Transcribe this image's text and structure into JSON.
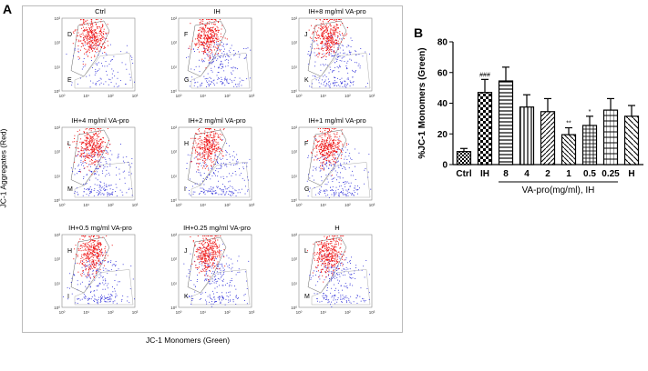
{
  "panel_labels": {
    "a": "A",
    "b": "B"
  },
  "flow": {
    "y_axis_title": "JC-1 Aggregates (Red)",
    "x_axis_title": "JC-1 Monomers (Green)",
    "tick_labels": [
      "10⁰",
      "10¹",
      "10²",
      "10³"
    ],
    "panels": [
      {
        "title": "Ctrl",
        "upper_gate": "D",
        "lower_gate": "E"
      },
      {
        "title": "IH",
        "upper_gate": "F",
        "lower_gate": "G"
      },
      {
        "title": "IH+8 mg/ml VA-pro",
        "upper_gate": "J",
        "lower_gate": "K"
      },
      {
        "title": "IH+4 mg/ml VA-pro",
        "upper_gate": "L",
        "lower_gate": "M"
      },
      {
        "title": "IH+2 mg/ml VA-pro",
        "upper_gate": "H",
        "lower_gate": "I"
      },
      {
        "title": "IH+1 mg/ml VA-pro",
        "upper_gate": "F",
        "lower_gate": "G"
      },
      {
        "title": "IH+0.5 mg/ml VA-pro",
        "upper_gate": "H",
        "lower_gate": "I"
      },
      {
        "title": "IH+0.25 mg/ml VA-pro",
        "upper_gate": "J",
        "lower_gate": "K"
      },
      {
        "title": "H",
        "upper_gate": "L",
        "lower_gate": "M"
      }
    ]
  },
  "chart_data": {
    "type": "bar",
    "title": "",
    "xlabel": "VA-pro(mg/ml), IH",
    "ylabel": "%JC-1 Monomers (Green)",
    "ylim": [
      0,
      80
    ],
    "yticks": [
      0,
      20,
      40,
      60,
      80
    ],
    "categories": [
      "Ctrl",
      "IH",
      "8",
      "4",
      "2",
      "1",
      "0.5",
      "0.25",
      "H"
    ],
    "values": [
      8.5,
      47,
      54.5,
      37.5,
      34.5,
      19.5,
      25.5,
      35.5,
      31.5
    ],
    "errors": [
      2,
      8.5,
      9,
      8,
      8.5,
      4.5,
      6,
      7.5,
      7
    ],
    "annotations": [
      "",
      "###",
      "",
      "",
      "",
      "**",
      "*",
      "",
      ""
    ],
    "bracket_start_category": "8",
    "bracket_end_category": "0.25",
    "colors": {
      "axis": "#000000",
      "fill": "#ffffff",
      "hatch": "#000000"
    }
  }
}
